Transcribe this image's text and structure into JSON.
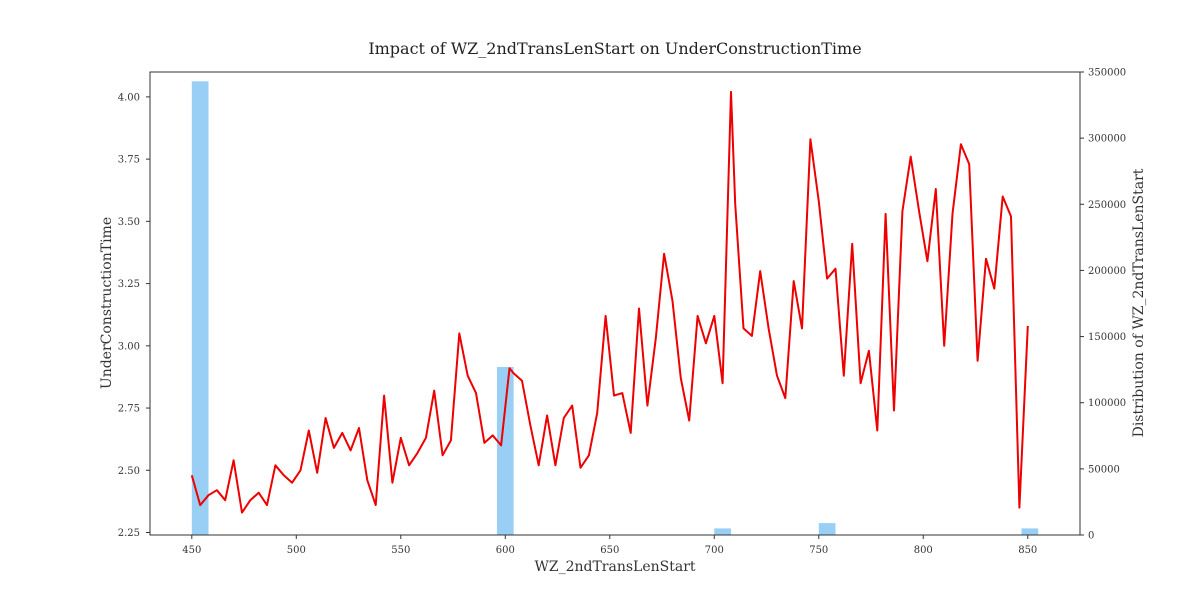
{
  "chart_data": {
    "type": "line",
    "title": "Impact of WZ_2ndTransLenStart on UnderConstructionTime",
    "xlabel": "WZ_2ndTransLenStart",
    "ylabel": "UnderConstructionTime",
    "y2label": "Distribution of WZ_2ndTransLenStart",
    "xlim": [
      430,
      875
    ],
    "ylim": [
      2.24,
      4.1
    ],
    "y2lim": [
      0,
      350000
    ],
    "x_ticks": [
      "450",
      "500",
      "550",
      "600",
      "650",
      "700",
      "750",
      "800",
      "850"
    ],
    "y_ticks": [
      "2.25",
      "2.50",
      "2.75",
      "3.00",
      "3.25",
      "3.50",
      "3.75",
      "4.00"
    ],
    "y2_ticks": [
      "0",
      "50000",
      "100000",
      "150000",
      "200000",
      "250000",
      "300000",
      "350000"
    ],
    "grid": false,
    "colors": {
      "line": "#ee0000",
      "bars": "#9acff5",
      "axis": "#333333"
    },
    "line_series": {
      "x": [
        450,
        454,
        458,
        462,
        466,
        470,
        474,
        478,
        482,
        486,
        490,
        494,
        498,
        502,
        506,
        510,
        514,
        518,
        522,
        526,
        530,
        534,
        538,
        542,
        546,
        550,
        554,
        558,
        562,
        566,
        570,
        574,
        578,
        582,
        586,
        590,
        594,
        598,
        602,
        604,
        608,
        612,
        616,
        620,
        624,
        628,
        632,
        636,
        640,
        644,
        648,
        652,
        656,
        660,
        664,
        668,
        672,
        676,
        680,
        684,
        688,
        692,
        696,
        700,
        704,
        708,
        710,
        714,
        718,
        722,
        726,
        730,
        734,
        738,
        742,
        746,
        750,
        754,
        758,
        762,
        766,
        770,
        774,
        778,
        782,
        786,
        790,
        794,
        798,
        802,
        806,
        810,
        814,
        818,
        822,
        826,
        830,
        834,
        838,
        842,
        846,
        850
      ],
      "y": [
        2.48,
        2.36,
        2.4,
        2.42,
        2.38,
        2.54,
        2.33,
        2.38,
        2.41,
        2.36,
        2.52,
        2.48,
        2.45,
        2.5,
        2.66,
        2.49,
        2.71,
        2.59,
        2.65,
        2.58,
        2.67,
        2.46,
        2.36,
        2.8,
        2.45,
        2.63,
        2.52,
        2.57,
        2.63,
        2.82,
        2.56,
        2.62,
        3.05,
        2.88,
        2.81,
        2.61,
        2.64,
        2.6,
        2.91,
        2.89,
        2.86,
        2.68,
        2.52,
        2.72,
        2.52,
        2.71,
        2.76,
        2.51,
        2.56,
        2.73,
        3.12,
        2.8,
        2.81,
        2.65,
        3.15,
        2.76,
        3.03,
        3.37,
        3.18,
        2.87,
        2.7,
        3.12,
        3.01,
        3.12,
        2.85,
        4.02,
        3.57,
        3.07,
        3.04,
        3.3,
        3.07,
        2.88,
        2.79,
        3.26,
        3.07,
        3.83,
        3.58,
        3.27,
        3.31,
        2.88,
        3.41,
        2.85,
        2.98,
        2.66,
        3.53,
        2.74,
        3.54,
        3.76,
        3.54,
        3.34,
        3.63,
        3.0,
        3.53,
        3.81,
        3.73,
        2.94,
        3.35,
        3.23,
        3.6,
        3.52,
        2.35,
        3.08
      ]
    },
    "bar_series": {
      "name": "",
      "bins": [
        {
          "x0": 450,
          "x1": 458,
          "count": 343000
        },
        {
          "x0": 596,
          "x1": 604,
          "count": 127000
        },
        {
          "x0": 700,
          "x1": 708,
          "count": 5000
        },
        {
          "x0": 750,
          "x1": 758,
          "count": 9000
        },
        {
          "x0": 847,
          "x1": 855,
          "count": 5000
        }
      ]
    }
  }
}
